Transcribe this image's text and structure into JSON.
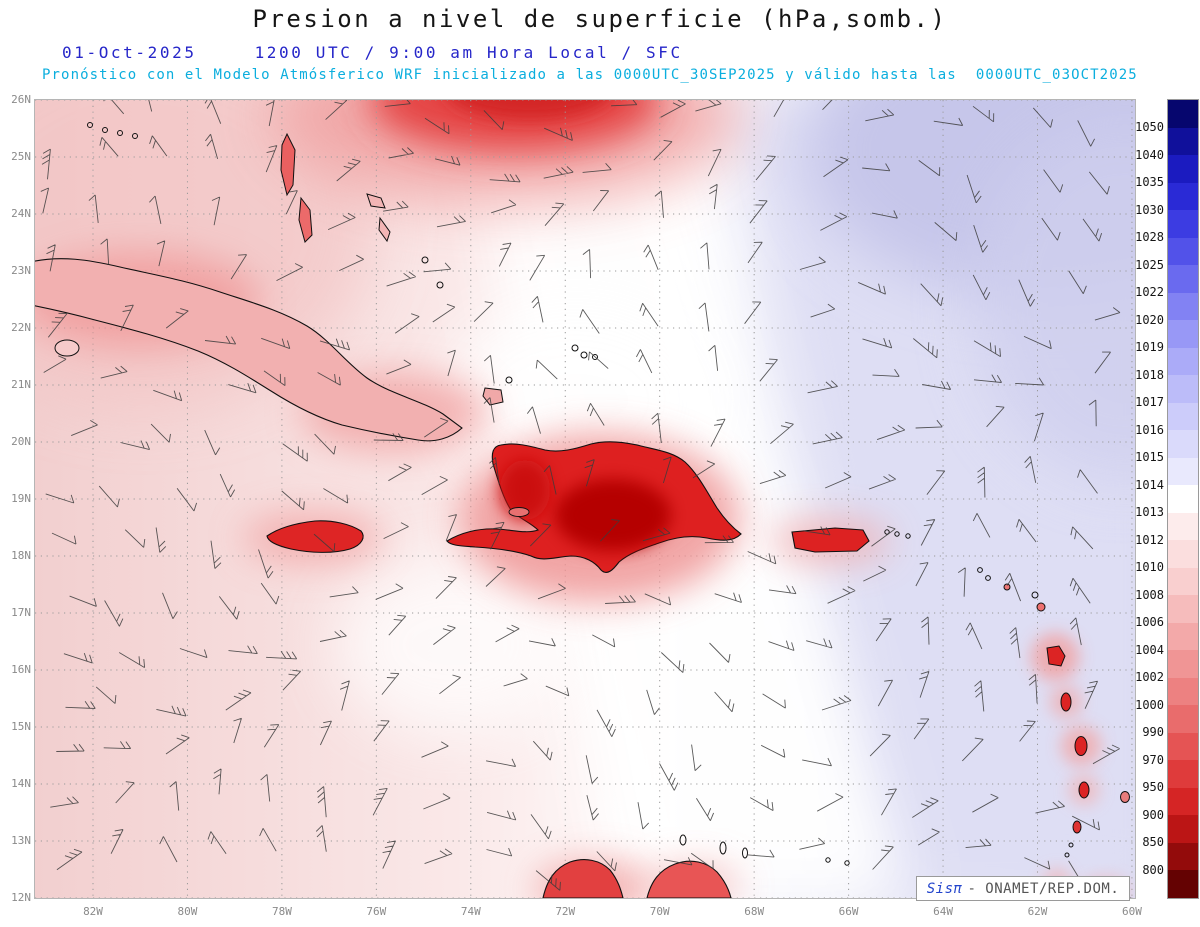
{
  "header": {
    "title": "Presion a nivel de superficie (hPa,somb.)",
    "date": "01-Oct-2025",
    "time": "1200 UTC / 9:00 am Hora Local / SFC",
    "forecast": "Pronóstico con el Modelo Atmósferico WRF inicializado a las 0000UTC_30SEP2025 y válido hasta las  0000UTC_03OCT2025"
  },
  "map": {
    "lat_labels": [
      "26N",
      "25N",
      "24N",
      "23N",
      "22N",
      "21N",
      "20N",
      "19N",
      "18N",
      "17N",
      "16N",
      "15N",
      "14N",
      "13N",
      "12N"
    ],
    "lon_labels": [
      "82W",
      "80W",
      "78W",
      "76W",
      "74W",
      "72W",
      "70W",
      "68W",
      "66W",
      "64W",
      "62W",
      "60W"
    ],
    "watermark_brand": "Sisπ",
    "watermark_org": "- ONAMET/REP.DOM."
  },
  "colorbar": {
    "unit": "hPa",
    "labels": [
      "1050",
      "1040",
      "1035",
      "1030",
      "1028",
      "1025",
      "1022",
      "1020",
      "1019",
      "1018",
      "1017",
      "1016",
      "1015",
      "1014",
      "1013",
      "1012",
      "1010",
      "1008",
      "1006",
      "1004",
      "1002",
      "1000",
      "990",
      "970",
      "950",
      "900",
      "850",
      "800"
    ],
    "cell_colors": [
      "#06066e",
      "#10109b",
      "#1b1bc0",
      "#2a2ad6",
      "#3c3ce2",
      "#5252e9",
      "#6a6aef",
      "#8282f3",
      "#9898f6",
      "#ababf8",
      "#bcbcf9",
      "#ccccfa",
      "#dadafb",
      "#e9e9fd",
      "#ffffff",
      "#fdecec",
      "#fbdede",
      "#f9cfcf",
      "#f6bcbc",
      "#f3a9a9",
      "#f09595",
      "#ed8181",
      "#e96c6c",
      "#e55454",
      "#df3b3b",
      "#d52525",
      "#bb1515",
      "#930b0b",
      "#640202"
    ]
  },
  "chart_data": {
    "type": "heatmap",
    "title": "Presion a nivel de superficie (hPa,somb.)",
    "units": "hPa",
    "region": {
      "lat_range": [
        "12N",
        "26N"
      ],
      "lon_range": [
        "82W",
        "60W"
      ]
    },
    "x_ticks": [
      "82W",
      "80W",
      "78W",
      "76W",
      "74W",
      "72W",
      "70W",
      "68W",
      "66W",
      "64W",
      "62W",
      "60W"
    ],
    "y_ticks": [
      "26N",
      "25N",
      "24N",
      "23N",
      "22N",
      "21N",
      "20N",
      "19N",
      "18N",
      "17N",
      "16N",
      "15N",
      "14N",
      "13N",
      "12N"
    ],
    "levels": [
      800,
      850,
      900,
      950,
      970,
      990,
      1000,
      1002,
      1004,
      1006,
      1008,
      1010,
      1012,
      1013,
      1014,
      1015,
      1016,
      1017,
      1018,
      1019,
      1020,
      1022,
      1025,
      1028,
      1030,
      1035,
      1040,
      1050
    ],
    "legend_position": "right",
    "grid": "dotted, 1° latitude / 2° longitude",
    "field_summary": {
      "west_caribbean": "1008-1013 hPa pink shading over western Caribbean and Gulf side",
      "central_band": "1013-1014 hPa white band running from the Bahamas southeast through the central Caribbean",
      "east_atlantic": "1015-1018 hPa pale blue/violet shading, deepest toward the top-right (NE Atlantic corner)",
      "top_center_low": "deeper red patch at the northern map edge near 74W-72W",
      "islands_terrain": "Cuba, Hispaniola, Jamaica, Puerto Rico, Lesser Antilles and Guajira shown as deep red terrain-reduced pressure (below 1000 hPa)"
    },
    "overlays": [
      "surface wind barbs (easterly trades)",
      "coastlines",
      "lat/lon dotted grid"
    ]
  }
}
